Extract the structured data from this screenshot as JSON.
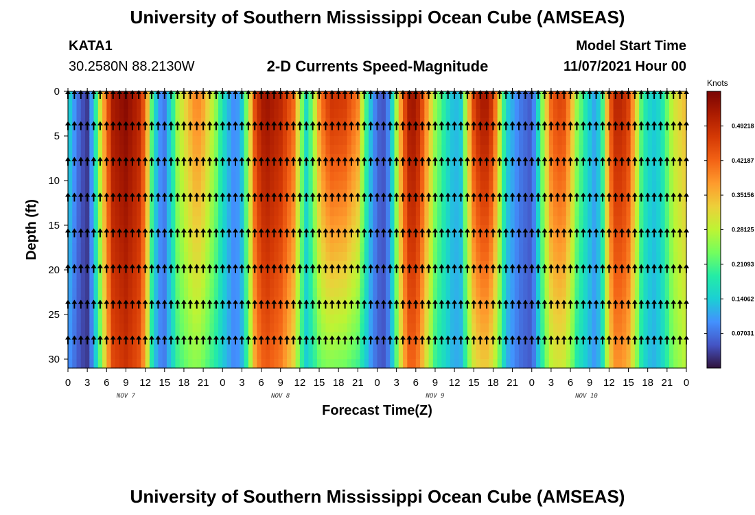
{
  "header": {
    "title": "University of Southern Mississippi Ocean Cube (AMSEAS)",
    "station_id": "KATA1",
    "station_coords": "30.2580N  88.2130W",
    "plot_title": "2-D Currents Speed-Magnitude",
    "start_label": "Model Start Time",
    "start_value": "11/07/2021 Hour 00"
  },
  "footer": {
    "title": "University of Southern Mississippi Ocean Cube (AMSEAS)"
  },
  "chart_data": {
    "type": "heatmap",
    "title": "2-D Currents Speed-Magnitude",
    "xlabel": "Forecast Time(Z)",
    "ylabel": "Depth (ft)",
    "x_ticks": [
      "0",
      "3",
      "6",
      "9",
      "12",
      "15",
      "18",
      "21",
      "0",
      "3",
      "6",
      "9",
      "12",
      "15",
      "18",
      "21",
      "0",
      "3",
      "6",
      "9",
      "12",
      "15",
      "18",
      "21",
      "0",
      "3",
      "6",
      "9",
      "12",
      "15",
      "18",
      "21",
      "0"
    ],
    "x_range_hours": [
      0,
      96
    ],
    "day_labels": [
      {
        "text": "NOV 7",
        "hour": 9
      },
      {
        "text": "NOV 8",
        "hour": 33
      },
      {
        "text": "NOV 9",
        "hour": 57
      },
      {
        "text": "NOV 10",
        "hour": 80.5
      }
    ],
    "y_ticks": [
      "0",
      "5",
      "10",
      "15",
      "20",
      "25",
      "30"
    ],
    "y_range_ft": [
      0,
      31
    ],
    "colorbar": {
      "title": "Knots",
      "min": 0,
      "max": 0.5625,
      "tick_labels": [
        "0.49218",
        "0.42187",
        "0.35156",
        "0.28125",
        "0.21093",
        "0.14062",
        "0.07031"
      ],
      "colors": [
        "#30123b",
        "#4454c4",
        "#4391fe",
        "#1bcfd4",
        "#24eca6",
        "#73fe5e",
        "#bdf434",
        "#ecd03a",
        "#fe9b2d",
        "#f36315",
        "#d53a05",
        "#ac1c01",
        "#7a0403"
      ]
    },
    "speed_profile": {
      "hours": [
        0,
        1,
        2,
        3,
        4,
        5,
        6,
        7,
        9,
        11,
        12,
        13,
        14,
        15,
        16,
        17,
        19,
        20,
        21,
        23,
        24,
        25,
        26,
        27,
        28,
        29,
        30,
        31,
        33,
        35,
        36,
        37,
        38,
        39,
        40,
        41,
        43,
        45,
        46,
        47,
        48,
        49,
        50,
        51,
        52,
        53,
        54,
        55,
        57,
        59,
        60,
        61,
        62,
        63,
        64,
        65,
        66,
        67,
        68,
        70,
        72,
        73,
        74,
        75,
        76,
        77,
        78,
        79,
        81,
        82,
        83,
        84,
        85,
        86,
        87,
        88,
        89,
        90,
        91,
        92,
        94,
        96
      ],
      "surface_knots": [
        0.16,
        0.1,
        0.05,
        0.03,
        0.14,
        0.3,
        0.42,
        0.52,
        0.55,
        0.5,
        0.42,
        0.22,
        0.1,
        0.08,
        0.16,
        0.27,
        0.36,
        0.4,
        0.37,
        0.25,
        0.17,
        0.12,
        0.08,
        0.14,
        0.28,
        0.45,
        0.52,
        0.53,
        0.5,
        0.42,
        0.28,
        0.16,
        0.25,
        0.38,
        0.45,
        0.48,
        0.47,
        0.4,
        0.24,
        0.13,
        0.06,
        0.05,
        0.1,
        0.27,
        0.43,
        0.52,
        0.53,
        0.45,
        0.26,
        0.16,
        0.12,
        0.14,
        0.32,
        0.46,
        0.52,
        0.52,
        0.47,
        0.3,
        0.15,
        0.08,
        0.05,
        0.16,
        0.3,
        0.42,
        0.46,
        0.45,
        0.38,
        0.26,
        0.14,
        0.1,
        0.21,
        0.42,
        0.5,
        0.5,
        0.46,
        0.35,
        0.22,
        0.16,
        0.14,
        0.16,
        0.3,
        0.35
      ],
      "bottom_knots": [
        0.1,
        0.07,
        0.04,
        0.03,
        0.1,
        0.22,
        0.35,
        0.45,
        0.48,
        0.44,
        0.36,
        0.18,
        0.09,
        0.08,
        0.14,
        0.2,
        0.24,
        0.25,
        0.23,
        0.18,
        0.14,
        0.11,
        0.08,
        0.12,
        0.22,
        0.36,
        0.42,
        0.43,
        0.4,
        0.32,
        0.22,
        0.14,
        0.18,
        0.22,
        0.24,
        0.24,
        0.23,
        0.2,
        0.15,
        0.1,
        0.06,
        0.05,
        0.09,
        0.22,
        0.35,
        0.42,
        0.42,
        0.35,
        0.2,
        0.14,
        0.11,
        0.12,
        0.22,
        0.3,
        0.33,
        0.33,
        0.3,
        0.22,
        0.12,
        0.07,
        0.05,
        0.13,
        0.22,
        0.28,
        0.3,
        0.29,
        0.25,
        0.18,
        0.12,
        0.09,
        0.17,
        0.32,
        0.38,
        0.38,
        0.35,
        0.27,
        0.18,
        0.13,
        0.12,
        0.14,
        0.24,
        0.28
      ]
    },
    "arrow_depths_ft": [
      0,
      3.5,
      7.5,
      11.5,
      15.5,
      19.5,
      23.5,
      27.5
    ],
    "arrow_hours": [
      0,
      1,
      2,
      3,
      4,
      5,
      6,
      7,
      8,
      9,
      10,
      11,
      12,
      13,
      14,
      15,
      16,
      17,
      18,
      19,
      20,
      21,
      22,
      23,
      24,
      25,
      26,
      27,
      28,
      29,
      30,
      31,
      32,
      33,
      34,
      35,
      36,
      37,
      38,
      39,
      40,
      41,
      42,
      43,
      44,
      45,
      46,
      47,
      48,
      49,
      50,
      51,
      52,
      53,
      54,
      55,
      56,
      57,
      58,
      59,
      60,
      61,
      62,
      63,
      64,
      65,
      66,
      67,
      68,
      69,
      70,
      71,
      72,
      73,
      74,
      75,
      76,
      77,
      78,
      79,
      80,
      81,
      82,
      83,
      84,
      85,
      86,
      87,
      88,
      89,
      90,
      91,
      92,
      93,
      94,
      95,
      96
    ],
    "arrow_direction_deg": [
      0,
      0,
      0,
      0,
      0,
      0,
      0,
      0,
      0,
      0,
      0,
      0,
      0,
      0,
      0,
      0,
      0,
      0,
      0,
      0,
      0,
      0,
      0,
      0,
      0,
      0,
      0,
      0,
      0,
      0,
      0,
      0,
      0,
      0,
      0,
      0,
      0,
      0,
      0,
      0,
      0,
      0,
      0,
      0,
      0,
      0,
      0,
      0,
      0,
      0,
      0,
      0,
      0,
      0,
      0,
      0,
      0,
      0,
      0,
      0,
      0,
      0,
      0,
      0,
      0,
      0,
      0,
      0,
      0,
      0,
      0,
      0,
      0,
      0,
      0,
      0,
      0,
      0,
      0,
      0,
      0,
      0,
      0,
      0,
      0,
      0,
      0,
      0,
      0,
      0,
      0,
      0,
      0,
      0,
      0,
      0,
      0
    ]
  }
}
